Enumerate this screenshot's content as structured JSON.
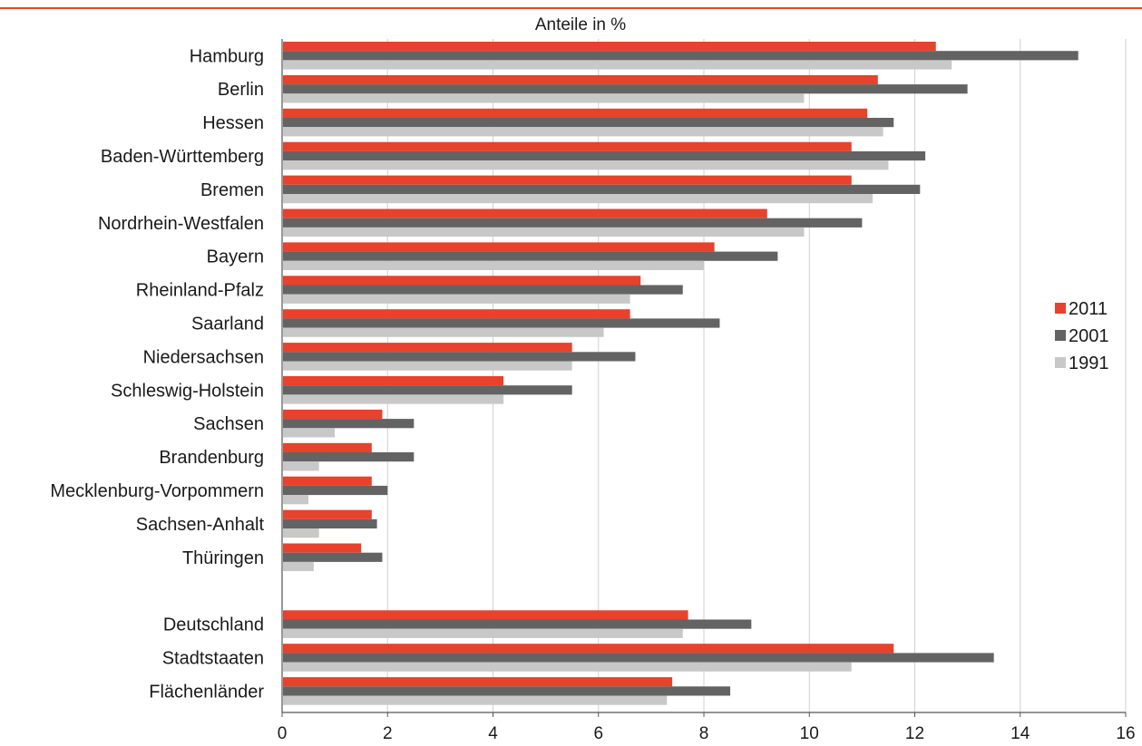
{
  "chart_data": {
    "type": "bar",
    "orientation": "horizontal",
    "title": "Anteile in %",
    "xlim": [
      0,
      16
    ],
    "xticks": [
      "0",
      "2",
      "4",
      "6",
      "8",
      "10",
      "12",
      "14",
      "16"
    ],
    "grid": true,
    "legend_position": "right",
    "categories": [
      "Hamburg",
      "Berlin",
      "Hessen",
      "Baden-Württemberg",
      "Bremen",
      "Nordrhein-Westfalen",
      "Bayern",
      "Rheinland-Pfalz",
      "Saarland",
      "Niedersachsen",
      "Schleswig-Holstein",
      "Sachsen",
      "Brandenburg",
      "Mecklenburg-Vorpommern",
      "Sachsen-Anhalt",
      "Thüringen",
      "",
      "Deutschland",
      "Stadtstaaten",
      "Flächenländer"
    ],
    "series": [
      {
        "name": "2011",
        "color": "#e8412c",
        "values": [
          12.4,
          11.3,
          11.1,
          10.8,
          10.8,
          9.2,
          8.2,
          6.8,
          6.6,
          5.5,
          4.2,
          1.9,
          1.7,
          1.7,
          1.7,
          1.5,
          null,
          7.7,
          11.6,
          7.4
        ]
      },
      {
        "name": "2001",
        "color": "#636363",
        "values": [
          15.1,
          13.0,
          11.6,
          12.2,
          12.1,
          11.0,
          9.4,
          7.6,
          8.3,
          6.7,
          5.5,
          2.5,
          2.5,
          2.0,
          1.8,
          1.9,
          null,
          8.9,
          13.5,
          8.5
        ]
      },
      {
        "name": "1991",
        "color": "#c8c8c8",
        "values": [
          12.7,
          9.9,
          11.4,
          11.5,
          11.2,
          9.9,
          8.0,
          6.6,
          6.1,
          5.5,
          4.2,
          1.0,
          0.7,
          0.5,
          0.7,
          0.6,
          null,
          7.6,
          10.8,
          7.3
        ]
      }
    ]
  }
}
